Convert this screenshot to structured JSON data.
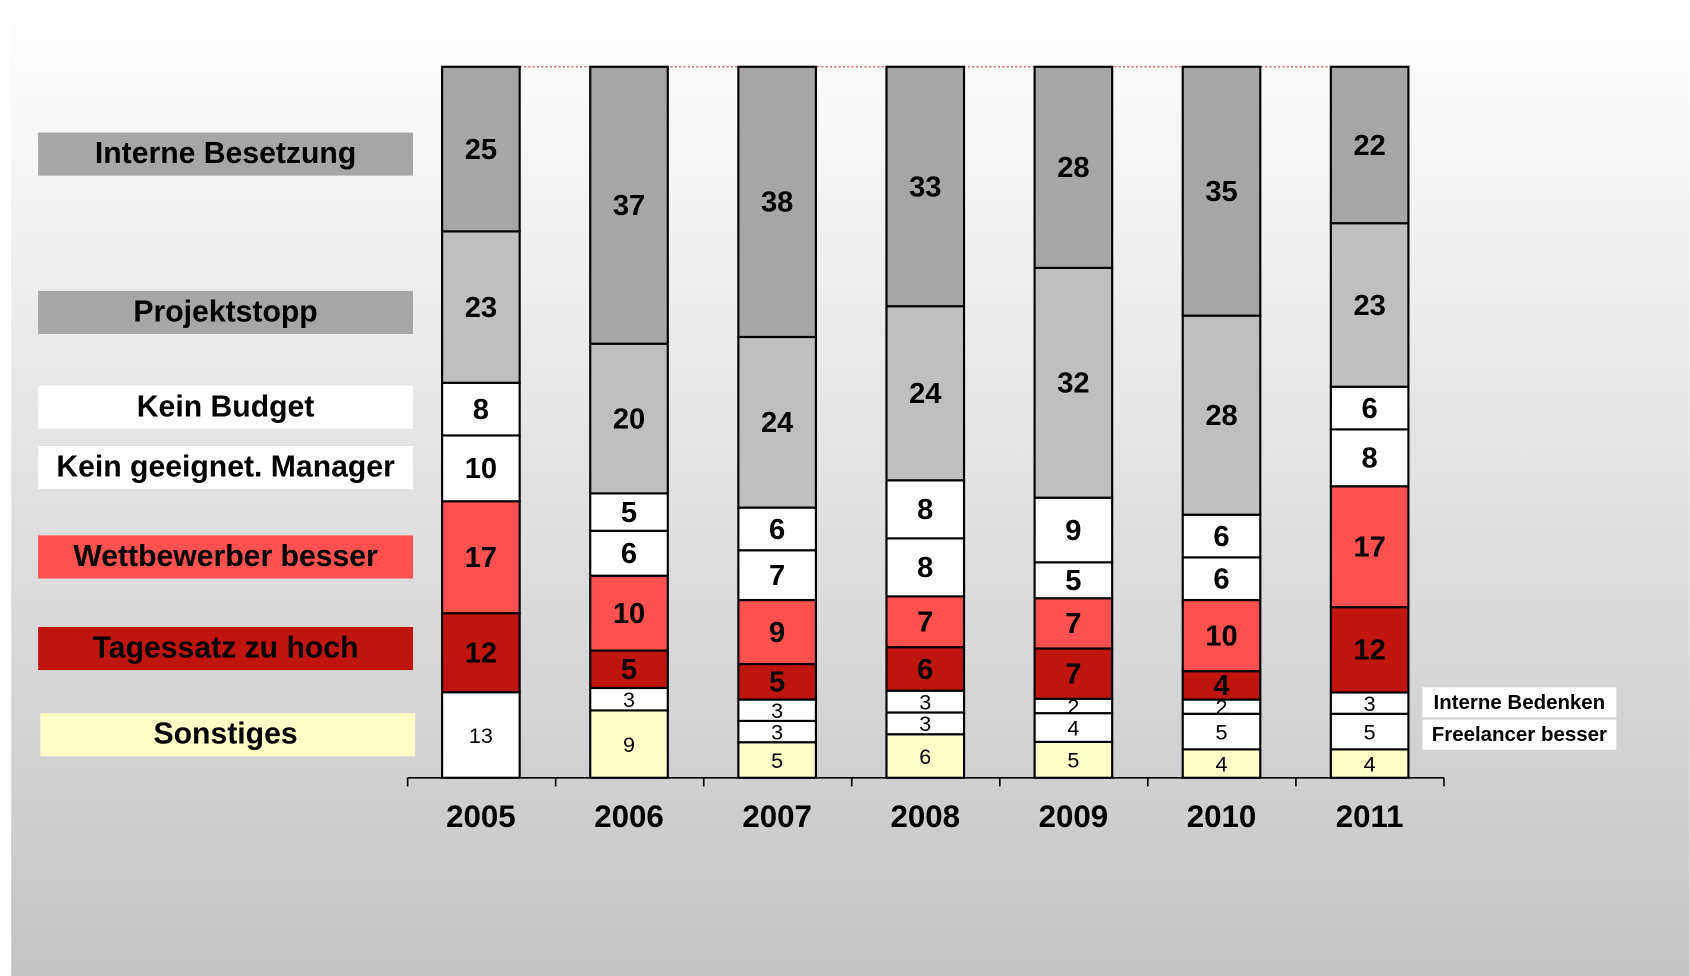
{
  "chart_data": {
    "type": "stacked-bar",
    "categories": [
      "2005",
      "2006",
      "2007",
      "2008",
      "2009",
      "2010",
      "2011"
    ],
    "series": [
      {
        "name": "Sonstiges",
        "color": "#ffffc8",
        "colors": [
          "#ffffff",
          "#ffffc8",
          "#ffffc8",
          "#ffffc8",
          "#ffffc8",
          "#ffffc8",
          "#ffffc8"
        ],
        "values": [
          13,
          9,
          5,
          6,
          5,
          4,
          4
        ]
      },
      {
        "name": "Freelancer besser",
        "color": "#ffffff",
        "values": [
          null,
          null,
          3,
          3,
          4,
          5,
          5
        ]
      },
      {
        "name": "Interne Bedenken",
        "color": "#ffffff",
        "values": [
          null,
          3,
          3,
          3,
          2,
          2,
          3
        ]
      },
      {
        "name": "Tagessatz zu hoch",
        "color": "#c0150f",
        "values": [
          12,
          5,
          5,
          6,
          7,
          4,
          12
        ]
      },
      {
        "name": "Wettbewerber besser",
        "color": "#ff5050",
        "values": [
          17,
          10,
          9,
          7,
          7,
          10,
          17
        ]
      },
      {
        "name": "Kein geeignet. Manager",
        "color": "#ffffff",
        "values": [
          10,
          6,
          7,
          8,
          5,
          6,
          8
        ]
      },
      {
        "name": "Kein Budget",
        "color": "#ffffff",
        "values": [
          8,
          5,
          6,
          8,
          9,
          6,
          6
        ]
      },
      {
        "name": "Projektstopp",
        "color": "#bfbfbf",
        "values": [
          23,
          20,
          24,
          24,
          32,
          28,
          23
        ]
      },
      {
        "name": "Interne Besetzung",
        "color": "#a6a6a6",
        "values": [
          25,
          37,
          38,
          33,
          28,
          35,
          22
        ]
      }
    ]
  }
}
